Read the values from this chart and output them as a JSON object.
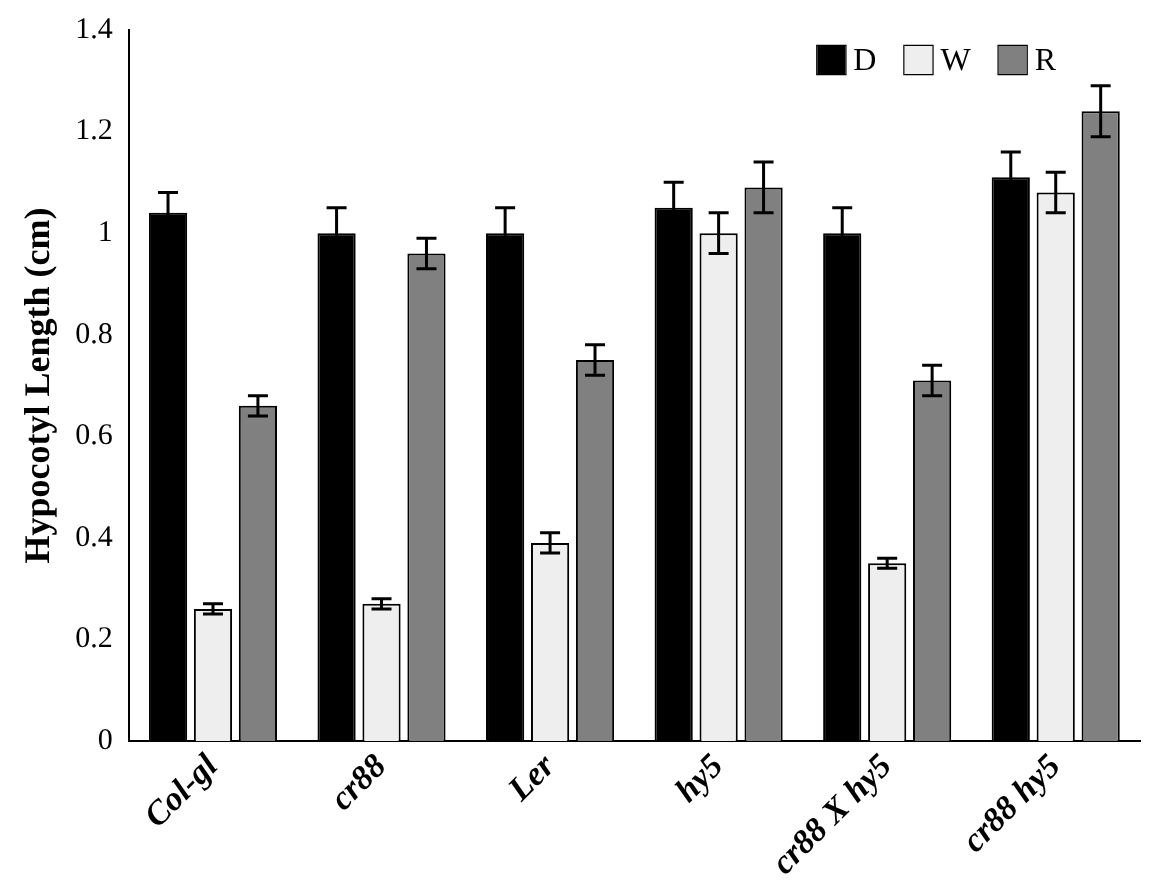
{
  "chart_data": {
    "type": "bar",
    "ylabel": "Hypocotyl Length (cm)",
    "categories": [
      "Col-gl",
      "cr88",
      "Ler",
      "hy5",
      "cr88 X hy5",
      "cr88 hy5"
    ],
    "series": [
      {
        "name": "D",
        "color": "#000000",
        "values": [
          1.04,
          1.0,
          1.0,
          1.05,
          1.0,
          1.11
        ],
        "errors": [
          0.04,
          0.05,
          0.05,
          0.05,
          0.05,
          0.05
        ]
      },
      {
        "name": "W",
        "color": "#eeeeee",
        "values": [
          0.26,
          0.27,
          0.39,
          1.0,
          0.35,
          1.08
        ],
        "errors": [
          0.01,
          0.01,
          0.02,
          0.04,
          0.01,
          0.04
        ]
      },
      {
        "name": "R",
        "color": "#808080",
        "values": [
          0.66,
          0.96,
          0.75,
          1.09,
          0.71,
          1.24
        ],
        "errors": [
          0.02,
          0.03,
          0.03,
          0.05,
          0.03,
          0.05
        ]
      }
    ],
    "ylim": [
      0,
      1.4
    ],
    "yticks": [
      0,
      0.2,
      0.4,
      0.6,
      0.8,
      1,
      1.2,
      1.4
    ],
    "grid": false,
    "legend": "top right"
  }
}
